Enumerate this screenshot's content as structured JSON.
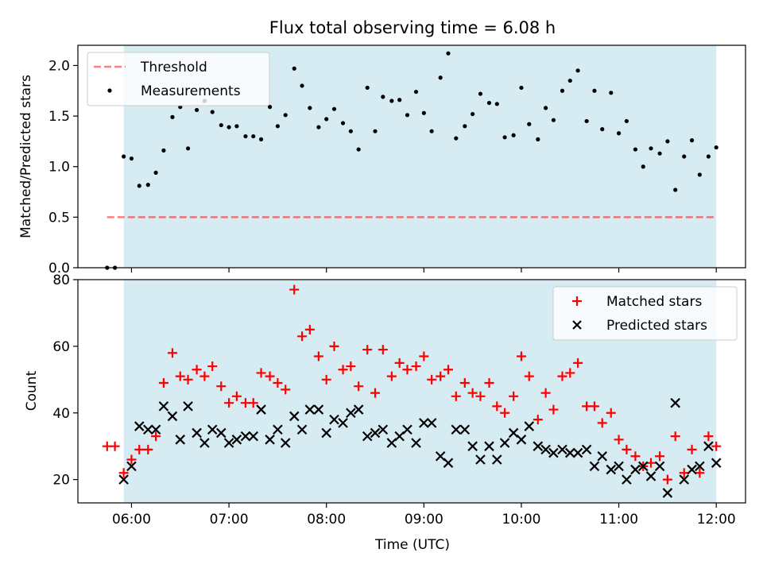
{
  "title": "Flux total observing time = 6.08 h",
  "colors": {
    "shade": "#add8e6",
    "threshold": "#ff0000",
    "matched": "#ff0000",
    "predicted": "#000000",
    "measurement": "#000000"
  },
  "chart_data": [
    {
      "type": "scatter",
      "ylabel": "Matched/Predicted stars",
      "xlim_hours": [
        5.45,
        12.3
      ],
      "ylim": [
        0,
        2.2
      ],
      "yticks": [
        0.0,
        0.5,
        1.0,
        1.5,
        2.0
      ],
      "ytick_labels": [
        "0.0",
        "0.5",
        "1.0",
        "1.5",
        "2.0"
      ],
      "shaded_span_hours": [
        5.92,
        12.0
      ],
      "legend_position": "top-left",
      "threshold": {
        "label": "Threshold",
        "value": 0.5,
        "x_range_hours": [
          5.75,
          12.0
        ]
      },
      "series": [
        {
          "name": "Measurements",
          "x_hours": [
            5.75,
            5.83,
            5.92,
            6.0,
            6.08,
            6.17,
            6.25,
            6.33,
            6.42,
            6.5,
            6.58,
            6.67,
            6.75,
            6.83,
            6.92,
            7.0,
            7.08,
            7.17,
            7.25,
            7.33,
            7.42,
            7.5,
            7.58,
            7.67,
            7.75,
            7.83,
            7.92,
            8.0,
            8.08,
            8.17,
            8.25,
            8.33,
            8.42,
            8.5,
            8.58,
            8.67,
            8.75,
            8.83,
            8.92,
            9.0,
            9.08,
            9.17,
            9.25,
            9.33,
            9.42,
            9.5,
            9.58,
            9.67,
            9.75,
            9.83,
            9.92,
            10.0,
            10.08,
            10.17,
            10.25,
            10.33,
            10.42,
            10.5,
            10.58,
            10.67,
            10.75,
            10.83,
            10.92,
            11.0,
            11.08,
            11.17,
            11.25,
            11.33,
            11.42,
            11.5,
            11.58,
            11.67,
            11.75,
            11.83,
            11.92,
            12.0
          ],
          "y": [
            0.0,
            0.0,
            1.1,
            1.08,
            0.81,
            0.82,
            0.94,
            1.16,
            1.49,
            1.59,
            1.18,
            1.56,
            1.65,
            1.54,
            1.41,
            1.39,
            1.4,
            1.3,
            1.3,
            1.27,
            1.59,
            1.4,
            1.51,
            1.97,
            1.8,
            1.58,
            1.39,
            1.47,
            1.57,
            1.43,
            1.35,
            1.17,
            1.78,
            1.35,
            1.69,
            1.65,
            1.66,
            1.51,
            1.74,
            1.53,
            1.35,
            1.88,
            2.12,
            1.28,
            1.4,
            1.52,
            1.72,
            1.63,
            1.62,
            1.29,
            1.31,
            1.78,
            1.42,
            1.27,
            1.58,
            1.46,
            1.75,
            1.85,
            1.95,
            1.45,
            1.75,
            1.37,
            1.73,
            1.33,
            1.45,
            1.17,
            1.0,
            1.18,
            1.13,
            1.25,
            0.77,
            1.1,
            1.26,
            0.92,
            1.1,
            1.19
          ]
        }
      ]
    },
    {
      "type": "scatter",
      "xlabel": "Time (UTC)",
      "ylabel": "Count",
      "xlim_hours": [
        5.45,
        12.3
      ],
      "ylim": [
        13,
        80
      ],
      "yticks": [
        20,
        40,
        60,
        80
      ],
      "ytick_labels": [
        "20",
        "40",
        "60",
        "80"
      ],
      "xticks_hours": [
        6,
        7,
        8,
        9,
        10,
        11,
        12
      ],
      "xtick_labels": [
        "06:00",
        "07:00",
        "08:00",
        "09:00",
        "10:00",
        "11:00",
        "12:00"
      ],
      "shaded_span_hours": [
        5.92,
        12.0
      ],
      "legend_position": "top-right",
      "series": [
        {
          "name": "Matched stars",
          "x_hours": [
            5.75,
            5.83,
            5.92,
            6.0,
            6.08,
            6.17,
            6.25,
            6.33,
            6.42,
            6.5,
            6.58,
            6.67,
            6.75,
            6.83,
            6.92,
            7.0,
            7.08,
            7.17,
            7.25,
            7.33,
            7.42,
            7.5,
            7.58,
            7.67,
            7.75,
            7.83,
            7.92,
            8.0,
            8.08,
            8.17,
            8.25,
            8.33,
            8.42,
            8.5,
            8.58,
            8.67,
            8.75,
            8.83,
            8.92,
            9.0,
            9.08,
            9.17,
            9.25,
            9.33,
            9.42,
            9.5,
            9.58,
            9.67,
            9.75,
            9.83,
            9.92,
            10.0,
            10.08,
            10.17,
            10.25,
            10.33,
            10.42,
            10.5,
            10.58,
            10.67,
            10.75,
            10.83,
            10.92,
            11.0,
            11.08,
            11.17,
            11.25,
            11.33,
            11.42,
            11.5,
            11.58,
            11.67,
            11.75,
            11.83,
            11.92,
            12.0
          ],
          "y": [
            30,
            30,
            22,
            26,
            29,
            29,
            33,
            49,
            58,
            51,
            50,
            53,
            51,
            54,
            48,
            43,
            45,
            43,
            43,
            52,
            51,
            49,
            47,
            77,
            63,
            65,
            57,
            50,
            60,
            53,
            54,
            48,
            59,
            46,
            59,
            51,
            55,
            53,
            54,
            57,
            50,
            51,
            53,
            45,
            49,
            46,
            45,
            49,
            42,
            40,
            45,
            57,
            51,
            38,
            46,
            41,
            51,
            52,
            55,
            42,
            42,
            37,
            40,
            32,
            29,
            27,
            24,
            25,
            27,
            20,
            33,
            22,
            29,
            22,
            33,
            30
          ]
        },
        {
          "name": "Predicted stars",
          "x_hours": [
            5.92,
            6.0,
            6.08,
            6.17,
            6.25,
            6.33,
            6.42,
            6.5,
            6.58,
            6.67,
            6.75,
            6.83,
            6.92,
            7.0,
            7.08,
            7.17,
            7.25,
            7.33,
            7.42,
            7.5,
            7.58,
            7.67,
            7.75,
            7.83,
            7.92,
            8.0,
            8.08,
            8.17,
            8.25,
            8.33,
            8.42,
            8.5,
            8.58,
            8.67,
            8.75,
            8.83,
            8.92,
            9.0,
            9.08,
            9.17,
            9.25,
            9.33,
            9.42,
            9.5,
            9.58,
            9.67,
            9.75,
            9.83,
            9.92,
            10.0,
            10.08,
            10.17,
            10.25,
            10.33,
            10.42,
            10.5,
            10.58,
            10.67,
            10.75,
            10.83,
            10.92,
            11.0,
            11.08,
            11.17,
            11.25,
            11.33,
            11.42,
            11.5,
            11.58,
            11.67,
            11.75,
            11.83,
            11.92,
            12.0
          ],
          "y": [
            20,
            24,
            36,
            35,
            35,
            42,
            39,
            32,
            42,
            34,
            31,
            35,
            34,
            31,
            32,
            33,
            33,
            41,
            32,
            35,
            31,
            39,
            35,
            41,
            41,
            34,
            38,
            37,
            40,
            41,
            33,
            34,
            35,
            31,
            33,
            35,
            31,
            37,
            37,
            27,
            25,
            35,
            35,
            30,
            26,
            30,
            26,
            31,
            34,
            32,
            36,
            30,
            29,
            28,
            29,
            28,
            28,
            29,
            24,
            27,
            23,
            24,
            20,
            23,
            24,
            21,
            24,
            16,
            43,
            20,
            23,
            24,
            30,
            25
          ]
        }
      ]
    }
  ]
}
